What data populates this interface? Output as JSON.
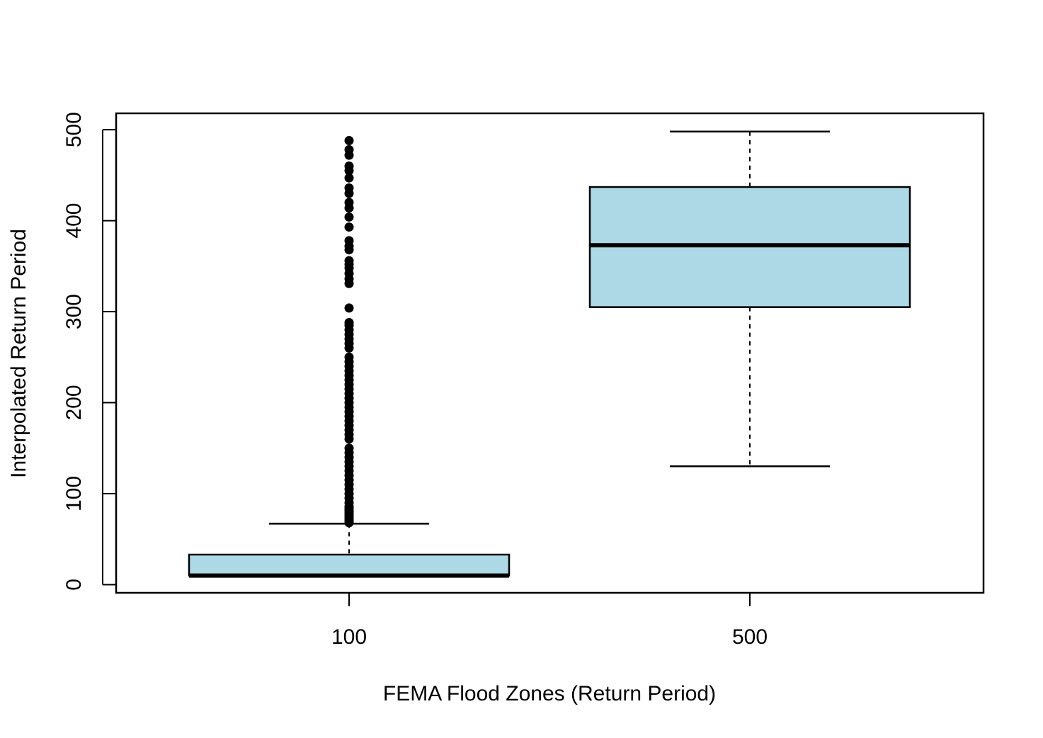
{
  "chart_data": {
    "type": "boxplot",
    "title": "",
    "xlabel": "FEMA Flood Zones (Return Period)",
    "ylabel": "Interpolated Return Period",
    "categories": [
      "100",
      "500"
    ],
    "ylim": [
      -9,
      518
    ],
    "yticks": [
      0,
      100,
      200,
      300,
      400,
      500
    ],
    "grid": false,
    "legend": "none",
    "box_fill": "#add8e6",
    "line_color": "#000000",
    "boxes": [
      {
        "category": "100",
        "whisker_low": 10,
        "q1": 10,
        "median": 10,
        "q3": 33,
        "whisker_high": 67,
        "outliers": [
          68,
          70,
          72,
          74,
          76,
          78,
          80,
          82,
          84,
          86,
          90,
          95,
          100,
          105,
          110,
          115,
          120,
          125,
          130,
          135,
          140,
          145,
          150,
          160,
          165,
          170,
          175,
          180,
          185,
          190,
          195,
          200,
          205,
          210,
          215,
          220,
          225,
          230,
          235,
          240,
          245,
          250,
          260,
          265,
          270,
          275,
          280,
          285,
          288,
          304,
          331,
          336,
          342,
          348,
          352,
          356,
          368,
          372,
          378,
          393,
          404,
          414,
          420,
          430,
          436,
          447,
          455,
          460,
          472,
          478,
          488
        ]
      },
      {
        "category": "500",
        "whisker_low": 130,
        "q1": 305,
        "median": 373,
        "q3": 437,
        "whisker_high": 498,
        "outliers": []
      }
    ]
  }
}
